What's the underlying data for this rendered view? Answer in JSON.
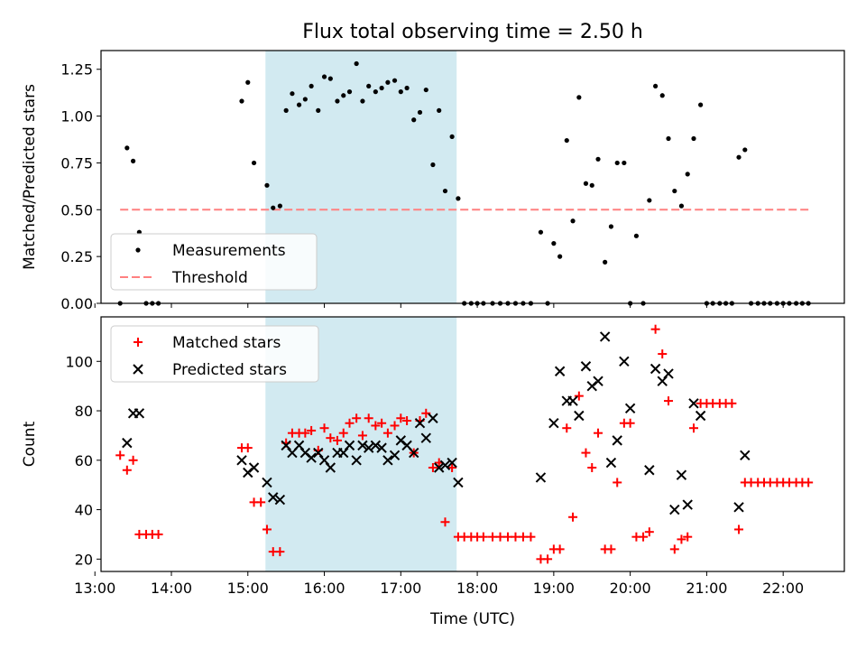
{
  "title": "Flux total observing time = 2.50 h",
  "colors": {
    "shade": "#add8e6",
    "measurement": "#000000",
    "threshold": "#ff8080",
    "matched": "#ff0000",
    "predicted": "#000000"
  },
  "chart_data": [
    {
      "type": "scatter",
      "panel": "top",
      "ylabel": "Matched/Predicted stars",
      "xlabel": "",
      "xlim": [
        13.08,
        22.8
      ],
      "ylim": [
        0,
        1.35
      ],
      "yticks": [
        0.0,
        0.25,
        0.5,
        0.75,
        1.0,
        1.25
      ],
      "ytick_labels": [
        "0.00",
        "0.25",
        "0.50",
        "0.75",
        "1.00",
        "1.25"
      ],
      "xticks": [
        13,
        14,
        15,
        16,
        17,
        18,
        19,
        20,
        21,
        22
      ],
      "shaded_region": [
        15.23,
        17.73
      ],
      "legend": {
        "placement": "lower-left",
        "entries": [
          "Measurements",
          "Threshold"
        ]
      },
      "threshold": {
        "name": "Threshold",
        "y": 0.5,
        "x_range": [
          13.33,
          22.33
        ]
      },
      "series": [
        {
          "name": "Measurements",
          "points": [
            [
              13.33,
              0.0
            ],
            [
              13.42,
              0.83
            ],
            [
              13.5,
              0.76
            ],
            [
              13.58,
              0.38
            ],
            [
              13.67,
              0.0
            ],
            [
              13.75,
              0.0
            ],
            [
              13.83,
              0.0
            ],
            [
              14.92,
              1.08
            ],
            [
              15.0,
              1.18
            ],
            [
              15.08,
              0.75
            ],
            [
              15.25,
              0.63
            ],
            [
              15.33,
              0.51
            ],
            [
              15.42,
              0.52
            ],
            [
              15.5,
              1.03
            ],
            [
              15.58,
              1.12
            ],
            [
              15.67,
              1.06
            ],
            [
              15.75,
              1.09
            ],
            [
              15.83,
              1.16
            ],
            [
              15.92,
              1.03
            ],
            [
              16.0,
              1.21
            ],
            [
              16.08,
              1.2
            ],
            [
              16.17,
              1.08
            ],
            [
              16.25,
              1.11
            ],
            [
              16.33,
              1.13
            ],
            [
              16.42,
              1.28
            ],
            [
              16.5,
              1.08
            ],
            [
              16.58,
              1.16
            ],
            [
              16.67,
              1.13
            ],
            [
              16.75,
              1.15
            ],
            [
              16.83,
              1.18
            ],
            [
              16.92,
              1.19
            ],
            [
              17.0,
              1.13
            ],
            [
              17.08,
              1.15
            ],
            [
              17.17,
              0.98
            ],
            [
              17.25,
              1.02
            ],
            [
              17.33,
              1.14
            ],
            [
              17.42,
              0.74
            ],
            [
              17.5,
              1.03
            ],
            [
              17.58,
              0.6
            ],
            [
              17.67,
              0.89
            ],
            [
              17.75,
              0.56
            ],
            [
              17.83,
              0.0
            ],
            [
              17.92,
              0.0
            ],
            [
              18.0,
              0.0
            ],
            [
              18.08,
              0.0
            ],
            [
              18.2,
              0.0
            ],
            [
              18.3,
              0.0
            ],
            [
              18.4,
              0.0
            ],
            [
              18.5,
              0.0
            ],
            [
              18.6,
              0.0
            ],
            [
              18.7,
              0.0
            ],
            [
              18.83,
              0.38
            ],
            [
              18.92,
              0.0
            ],
            [
              19.0,
              0.32
            ],
            [
              19.08,
              0.25
            ],
            [
              19.17,
              0.87
            ],
            [
              19.25,
              0.44
            ],
            [
              19.33,
              1.1
            ],
            [
              19.42,
              0.64
            ],
            [
              19.5,
              0.63
            ],
            [
              19.58,
              0.77
            ],
            [
              19.67,
              0.22
            ],
            [
              19.75,
              0.41
            ],
            [
              19.83,
              0.75
            ],
            [
              19.92,
              0.75
            ],
            [
              20.0,
              0.0
            ],
            [
              20.08,
              0.36
            ],
            [
              20.17,
              0.0
            ],
            [
              20.25,
              0.55
            ],
            [
              20.33,
              1.16
            ],
            [
              20.42,
              1.11
            ],
            [
              20.5,
              0.88
            ],
            [
              20.58,
              0.6
            ],
            [
              20.67,
              0.52
            ],
            [
              20.75,
              0.69
            ],
            [
              20.83,
              0.88
            ],
            [
              20.92,
              1.06
            ],
            [
              21.0,
              0.0
            ],
            [
              21.08,
              0.0
            ],
            [
              21.17,
              0.0
            ],
            [
              21.25,
              0.0
            ],
            [
              21.33,
              0.0
            ],
            [
              21.42,
              0.78
            ],
            [
              21.5,
              0.82
            ],
            [
              21.58,
              0.0
            ],
            [
              21.67,
              0.0
            ],
            [
              21.75,
              0.0
            ],
            [
              21.83,
              0.0
            ],
            [
              21.92,
              0.0
            ],
            [
              22.0,
              0.0
            ],
            [
              22.08,
              0.0
            ],
            [
              22.17,
              0.0
            ],
            [
              22.25,
              0.0
            ],
            [
              22.33,
              0.0
            ]
          ]
        }
      ]
    },
    {
      "type": "scatter",
      "panel": "bottom",
      "ylabel": "Count",
      "xlabel": "Time (UTC)",
      "xlim": [
        13.08,
        22.8
      ],
      "ylim": [
        15,
        118
      ],
      "yticks": [
        20,
        40,
        60,
        80,
        100
      ],
      "ytick_labels": [
        "20",
        "40",
        "60",
        "80",
        "100"
      ],
      "xticks": [
        13,
        14,
        15,
        16,
        17,
        18,
        19,
        20,
        21,
        22
      ],
      "xtick_labels": [
        "13:00",
        "14:00",
        "15:00",
        "16:00",
        "17:00",
        "18:00",
        "19:00",
        "20:00",
        "21:00",
        "22:00"
      ],
      "shaded_region": [
        15.23,
        17.73
      ],
      "legend": {
        "placement": "upper-left",
        "entries": [
          "Matched stars",
          "Predicted stars"
        ]
      },
      "series": [
        {
          "name": "Matched stars",
          "marker": "plus",
          "points": [
            [
              13.33,
              62
            ],
            [
              13.42,
              56
            ],
            [
              13.5,
              60
            ],
            [
              13.58,
              30
            ],
            [
              13.67,
              30
            ],
            [
              13.75,
              30
            ],
            [
              13.83,
              30
            ],
            [
              14.92,
              65
            ],
            [
              15.0,
              65
            ],
            [
              15.08,
              43
            ],
            [
              15.17,
              43
            ],
            [
              15.25,
              32
            ],
            [
              15.33,
              23
            ],
            [
              15.42,
              23
            ],
            [
              15.5,
              67
            ],
            [
              15.58,
              71
            ],
            [
              15.67,
              71
            ],
            [
              15.75,
              71
            ],
            [
              15.83,
              72
            ],
            [
              15.92,
              64
            ],
            [
              16.0,
              73
            ],
            [
              16.08,
              69
            ],
            [
              16.17,
              68
            ],
            [
              16.25,
              71
            ],
            [
              16.33,
              75
            ],
            [
              16.42,
              77
            ],
            [
              16.5,
              70
            ],
            [
              16.58,
              77
            ],
            [
              16.67,
              74
            ],
            [
              16.75,
              75
            ],
            [
              16.83,
              71
            ],
            [
              16.92,
              74
            ],
            [
              17.0,
              77
            ],
            [
              17.08,
              76
            ],
            [
              17.17,
              63
            ],
            [
              17.25,
              76
            ],
            [
              17.33,
              79
            ],
            [
              17.42,
              57
            ],
            [
              17.5,
              59
            ],
            [
              17.58,
              35
            ],
            [
              17.67,
              57
            ],
            [
              17.75,
              29
            ],
            [
              17.83,
              29
            ],
            [
              17.92,
              29
            ],
            [
              18.0,
              29
            ],
            [
              18.08,
              29
            ],
            [
              18.2,
              29
            ],
            [
              18.3,
              29
            ],
            [
              18.4,
              29
            ],
            [
              18.5,
              29
            ],
            [
              18.6,
              29
            ],
            [
              18.7,
              29
            ],
            [
              18.83,
              20
            ],
            [
              18.92,
              20
            ],
            [
              19.0,
              24
            ],
            [
              19.08,
              24
            ],
            [
              19.17,
              73
            ],
            [
              19.25,
              37
            ],
            [
              19.33,
              86
            ],
            [
              19.42,
              63
            ],
            [
              19.5,
              57
            ],
            [
              19.58,
              71
            ],
            [
              19.67,
              24
            ],
            [
              19.75,
              24
            ],
            [
              19.83,
              51
            ],
            [
              19.92,
              75
            ],
            [
              20.0,
              75
            ],
            [
              20.08,
              29
            ],
            [
              20.17,
              29
            ],
            [
              20.25,
              31
            ],
            [
              20.33,
              113
            ],
            [
              20.42,
              103
            ],
            [
              20.5,
              84
            ],
            [
              20.58,
              24
            ],
            [
              20.67,
              28
            ],
            [
              20.75,
              29
            ],
            [
              20.83,
              73
            ],
            [
              20.92,
              83
            ],
            [
              21.0,
              83
            ],
            [
              21.08,
              83
            ],
            [
              21.17,
              83
            ],
            [
              21.25,
              83
            ],
            [
              21.33,
              83
            ],
            [
              21.42,
              32
            ],
            [
              21.5,
              51
            ],
            [
              21.58,
              51
            ],
            [
              21.67,
              51
            ],
            [
              21.75,
              51
            ],
            [
              21.83,
              51
            ],
            [
              21.92,
              51
            ],
            [
              22.0,
              51
            ],
            [
              22.08,
              51
            ],
            [
              22.17,
              51
            ],
            [
              22.25,
              51
            ],
            [
              22.33,
              51
            ]
          ]
        },
        {
          "name": "Predicted stars",
          "marker": "x",
          "points": [
            [
              13.42,
              67
            ],
            [
              13.5,
              79
            ],
            [
              13.58,
              79
            ],
            [
              14.92,
              60
            ],
            [
              15.0,
              55
            ],
            [
              15.08,
              57
            ],
            [
              15.25,
              51
            ],
            [
              15.33,
              45
            ],
            [
              15.42,
              44
            ],
            [
              15.5,
              66
            ],
            [
              15.58,
              63
            ],
            [
              15.67,
              66
            ],
            [
              15.75,
              63
            ],
            [
              15.83,
              61
            ],
            [
              15.92,
              63
            ],
            [
              16.0,
              60
            ],
            [
              16.08,
              57
            ],
            [
              16.17,
              63
            ],
            [
              16.25,
              63
            ],
            [
              16.33,
              66
            ],
            [
              16.42,
              60
            ],
            [
              16.5,
              66
            ],
            [
              16.58,
              65
            ],
            [
              16.67,
              66
            ],
            [
              16.75,
              65
            ],
            [
              16.83,
              60
            ],
            [
              16.92,
              62
            ],
            [
              17.0,
              68
            ],
            [
              17.08,
              66
            ],
            [
              17.17,
              63
            ],
            [
              17.25,
              75
            ],
            [
              17.33,
              69
            ],
            [
              17.42,
              77
            ],
            [
              17.5,
              57
            ],
            [
              17.58,
              58
            ],
            [
              17.67,
              59
            ],
            [
              17.75,
              51
            ],
            [
              18.83,
              53
            ],
            [
              19.0,
              75
            ],
            [
              19.08,
              96
            ],
            [
              19.17,
              84
            ],
            [
              19.25,
              84
            ],
            [
              19.33,
              78
            ],
            [
              19.42,
              98
            ],
            [
              19.5,
              90
            ],
            [
              19.58,
              92
            ],
            [
              19.67,
              110
            ],
            [
              19.75,
              59
            ],
            [
              19.83,
              68
            ],
            [
              19.92,
              100
            ],
            [
              20.0,
              81
            ],
            [
              20.25,
              56
            ],
            [
              20.33,
              97
            ],
            [
              20.42,
              92
            ],
            [
              20.5,
              95
            ],
            [
              20.58,
              40
            ],
            [
              20.67,
              54
            ],
            [
              20.75,
              42
            ],
            [
              20.83,
              83
            ],
            [
              20.92,
              78
            ],
            [
              21.42,
              41
            ],
            [
              21.5,
              62
            ]
          ]
        }
      ]
    }
  ]
}
